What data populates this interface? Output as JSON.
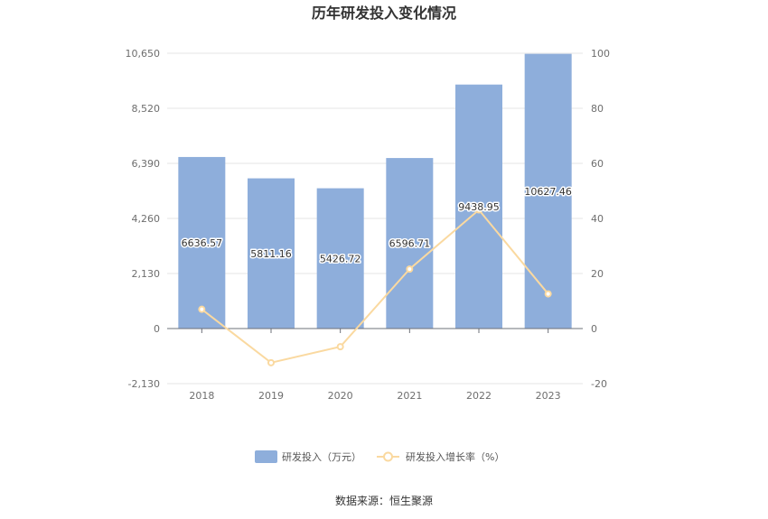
{
  "chart_data": {
    "type": "bar",
    "title": "历年研发投入变化情况",
    "categories": [
      "2018",
      "2019",
      "2020",
      "2021",
      "2022",
      "2023"
    ],
    "series": [
      {
        "name": "研发投入（万元）",
        "type": "bar",
        "axis": "left",
        "color": "#8eaedb",
        "values": [
          6636.57,
          5811.16,
          5426.72,
          6596.71,
          9438.95,
          10627.46
        ],
        "labels": [
          "6636.57",
          "5811.16",
          "5426.72",
          "6596.71",
          "9438.95",
          "10627.46"
        ]
      },
      {
        "name": "研发投入增长率（%）",
        "type": "line",
        "axis": "right",
        "color": "#fad9a0",
        "values": [
          7.0,
          -12.4,
          -6.6,
          21.6,
          43.1,
          12.6
        ]
      }
    ],
    "y_left": {
      "ylim": [
        -2130,
        10650
      ],
      "ticks": [
        -2130,
        0,
        2130,
        4260,
        6390,
        8520,
        10650
      ],
      "tick_labels": [
        "-2,130",
        "0",
        "2,130",
        "4,260",
        "6,390",
        "8,520",
        "10,650"
      ]
    },
    "y_right": {
      "ylim": [
        -20,
        100
      ],
      "ticks": [
        -20,
        0,
        20,
        40,
        60,
        80,
        100
      ],
      "tick_labels": [
        "-20",
        "0",
        "20",
        "40",
        "60",
        "80",
        "100"
      ]
    },
    "grid": true,
    "legend_position": "bottom-center",
    "source": "数据来源：恒生聚源"
  }
}
